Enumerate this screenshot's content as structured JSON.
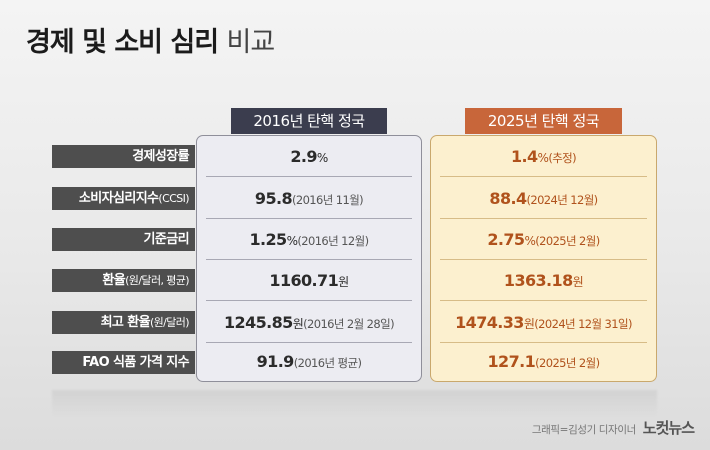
{
  "title_main": "경제 및 소비 심리",
  "title_light": "비교",
  "headers": {
    "col2016": "2016년 탄핵 정국",
    "col2025": "2025년 탄핵 정국"
  },
  "rows": [
    {
      "label": "경제성장률",
      "label_sub": "",
      "v16_num": "2.9",
      "v16_unit": "%",
      "v16_note": "",
      "v25_num": "1.4",
      "v25_unit": "%",
      "v25_note": "(추정)"
    },
    {
      "label": "소비자심리지수",
      "label_sub": "(CCSI)",
      "v16_num": "95.8",
      "v16_unit": "",
      "v16_note": "(2016년 11월)",
      "v25_num": "88.4",
      "v25_unit": "",
      "v25_note": "(2024년 12월)"
    },
    {
      "label": "기준금리",
      "label_sub": "",
      "v16_num": "1.25",
      "v16_unit": "%",
      "v16_note": "(2016년 12월)",
      "v25_num": "2.75",
      "v25_unit": "%",
      "v25_note": "(2025년 2월)"
    },
    {
      "label": "환율",
      "label_sub": "(원/달러, 평균)",
      "v16_num": "1160.71",
      "v16_unit": "원",
      "v16_note": "",
      "v25_num": "1363.18",
      "v25_unit": "원",
      "v25_note": ""
    },
    {
      "label": "최고 환율",
      "label_sub": "(원/달러)",
      "v16_num": "1245.85",
      "v16_unit": "원",
      "v16_note": "(2016년 2월 28일)",
      "v25_num": "1474.33",
      "v25_unit": "원",
      "v25_note": "(2024년 12월 31일)"
    },
    {
      "label": "FAO 식품 가격 지수",
      "label_sub": "",
      "v16_num": "91.9",
      "v16_unit": "",
      "v16_note": "(2016년 평균)",
      "v25_num": "127.1",
      "v25_unit": "",
      "v25_note": "(2025년 2월)"
    }
  ],
  "credit": "그래픽=김성기 디자이너",
  "logo": "노컷뉴스"
}
